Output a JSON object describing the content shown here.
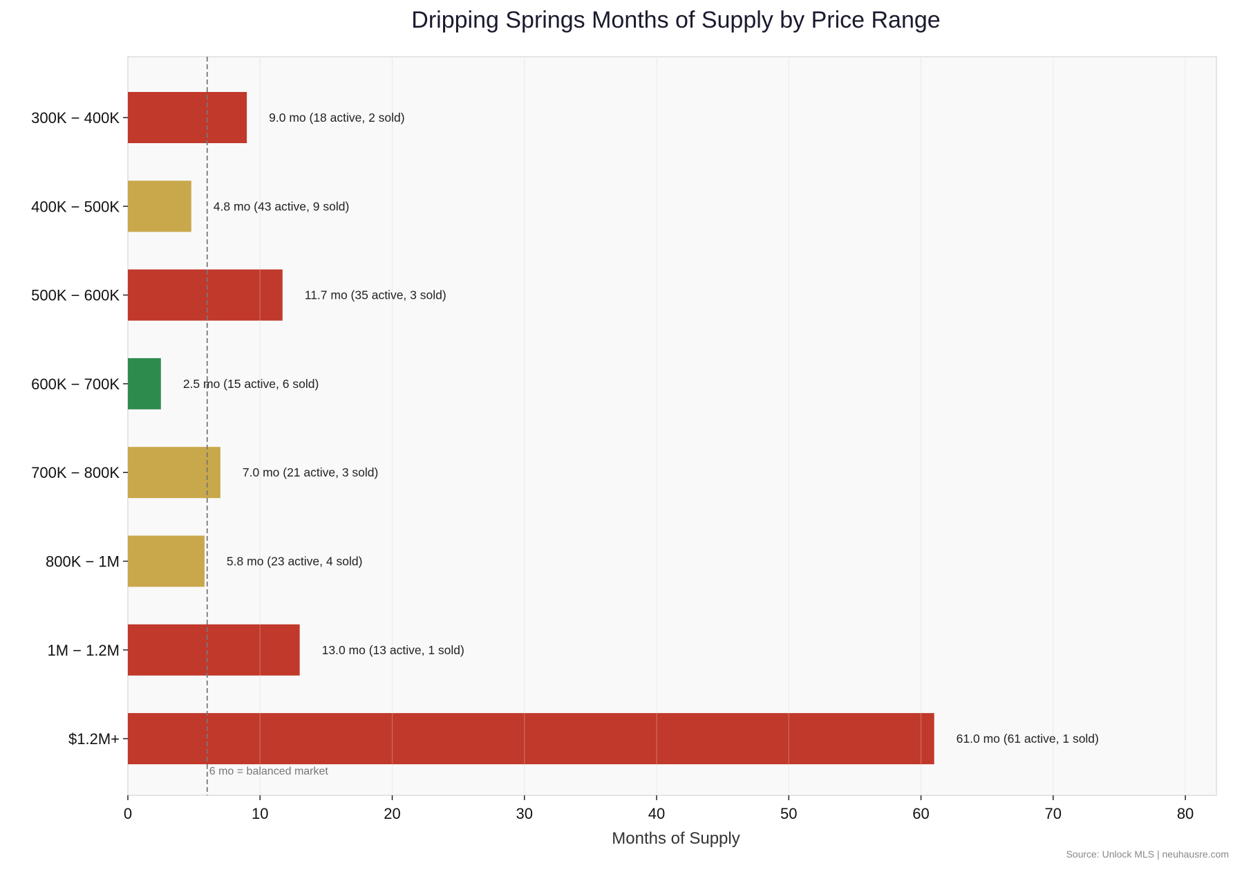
{
  "chart_data": {
    "type": "bar",
    "orientation": "horizontal",
    "title": "Dripping Springs Months of Supply by Price Range",
    "xlabel": "Months of Supply",
    "ylabel": "",
    "xlim": [
      0,
      82.35
    ],
    "xticks": [
      0,
      10,
      20,
      30,
      40,
      50,
      60,
      70,
      80
    ],
    "grid": "vertical",
    "categories": [
      "300K − 400K",
      "400K − 500K",
      "500K − 600K",
      "600K − 700K",
      "700K − 800K",
      "800K − 1M",
      "1M − 1.2M",
      "$1.2M+"
    ],
    "values": [
      9.0,
      4.8,
      11.7,
      2.5,
      7.0,
      5.8,
      13.0,
      61.0
    ],
    "colors": [
      "#c0392b",
      "#c9a84c",
      "#c0392b",
      "#2e8b4e",
      "#c9a84c",
      "#c9a84c",
      "#c0392b",
      "#c0392b"
    ],
    "data_labels": [
      "9.0 mo  (18 active, 2 sold)",
      "4.8 mo  (43 active, 9 sold)",
      "11.7 mo  (35 active, 3 sold)",
      "2.5 mo  (15 active, 6 sold)",
      "7.0 mo  (21 active, 3 sold)",
      "5.8 mo  (23 active, 4 sold)",
      "13.0 mo  (13 active, 1 sold)",
      "61.0 mo  (61 active, 1 sold)"
    ],
    "reference_line": {
      "x": 6,
      "label": "6 mo = balanced market",
      "style": "dashed",
      "color": "#777777"
    },
    "background_color": "#f9f9f9"
  },
  "source": "Source: Unlock MLS | neuhausre.com"
}
